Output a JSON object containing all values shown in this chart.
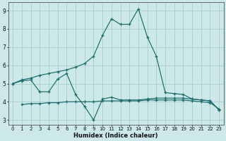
{
  "xlabel": "Humidex (Indice chaleur)",
  "x_values": [
    0,
    1,
    2,
    3,
    4,
    5,
    6,
    7,
    8,
    9,
    10,
    11,
    12,
    13,
    14,
    15,
    16,
    17,
    18,
    19,
    20,
    21,
    22,
    23
  ],
  "line1": [
    5.0,
    5.2,
    5.3,
    5.45,
    5.55,
    5.65,
    5.75,
    5.9,
    6.1,
    6.5,
    7.65,
    8.55,
    8.25,
    8.25,
    9.1,
    7.55,
    6.5,
    4.5,
    4.45,
    4.4,
    4.15,
    4.1,
    4.05,
    3.55
  ],
  "line2": [
    5.0,
    5.15,
    5.2,
    4.55,
    4.55,
    5.25,
    5.55,
    4.4,
    3.75,
    3.0,
    4.15,
    4.25,
    4.1,
    4.1,
    4.1,
    4.15,
    4.2,
    4.2,
    4.2,
    4.2,
    4.15,
    4.1,
    4.05,
    3.55
  ],
  "line3": [
    null,
    3.85,
    3.9,
    3.9,
    3.95,
    3.95,
    4.0,
    4.0,
    4.0,
    4.0,
    4.05,
    4.05,
    4.05,
    4.05,
    4.05,
    4.1,
    4.1,
    4.1,
    4.1,
    4.1,
    4.05,
    4.0,
    3.95,
    3.6
  ],
  "bg_color": "#cce8e8",
  "line_color": "#1a6b6b",
  "grid_color": "#a8cccc",
  "ylim_min": 2.75,
  "ylim_max": 9.45,
  "yticks": [
    3,
    4,
    5,
    6,
    7,
    8,
    9
  ]
}
